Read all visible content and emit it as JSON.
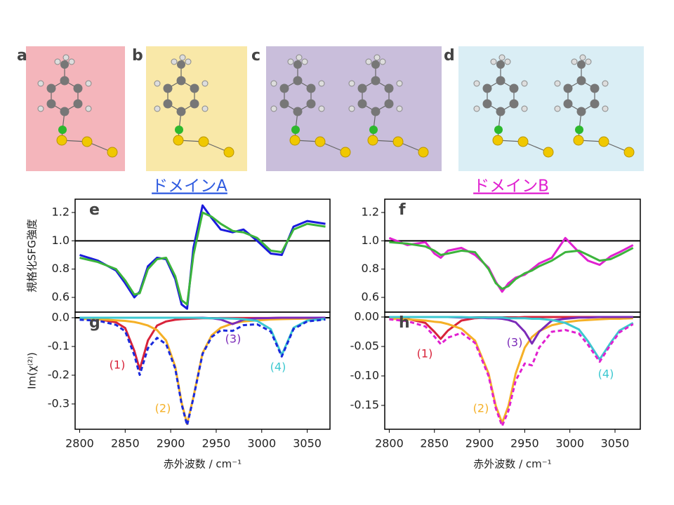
{
  "figure": {
    "panel_labels": [
      "a",
      "b",
      "c",
      "d"
    ],
    "domain_labels": [
      "ドメインA",
      "ドメインB"
    ],
    "domain_colors": [
      "#2f5be0",
      "#e020d0"
    ]
  },
  "chart_data": [
    {
      "type": "line",
      "label": "e",
      "ylabel": "規格化SFG強度",
      "x": [
        2800,
        2820,
        2840,
        2850,
        2860,
        2866,
        2875,
        2885,
        2895,
        2905,
        2912,
        2918,
        2925,
        2935,
        2945,
        2955,
        2968,
        2980,
        2995,
        3010,
        3022,
        3035,
        3050,
        3070
      ],
      "series": [
        {
          "color": "#1a1adc",
          "dash": false,
          "values": [
            0.9,
            0.86,
            0.79,
            0.7,
            0.6,
            0.64,
            0.82,
            0.88,
            0.87,
            0.73,
            0.55,
            0.52,
            0.95,
            1.25,
            1.16,
            1.08,
            1.06,
            1.08,
            1.0,
            0.91,
            0.9,
            1.1,
            1.14,
            1.12
          ]
        },
        {
          "color": "#3cb43c",
          "dash": false,
          "values": [
            0.88,
            0.85,
            0.8,
            0.72,
            0.62,
            0.63,
            0.8,
            0.87,
            0.88,
            0.75,
            0.58,
            0.55,
            0.9,
            1.2,
            1.17,
            1.12,
            1.07,
            1.06,
            1.02,
            0.93,
            0.92,
            1.08,
            1.12,
            1.1
          ]
        }
      ],
      "xlim": [
        2795,
        3075
      ],
      "ylim": [
        0.496,
        1.294
      ],
      "yticks": [
        0.6,
        0.8,
        {
          "value": 1,
          "label": "1.0"
        },
        1.2
      ],
      "hline": 1
    },
    {
      "type": "line",
      "label": "f",
      "x": [
        2800,
        2820,
        2840,
        2850,
        2857,
        2865,
        2880,
        2895,
        2910,
        2918,
        2925,
        2932,
        2940,
        2950,
        2958,
        2966,
        2980,
        2995,
        3010,
        3020,
        3033,
        3045,
        3055,
        3070
      ],
      "series": [
        {
          "color": "#e020d0",
          "dash": false,
          "values": [
            1.02,
            0.97,
            0.99,
            0.91,
            0.88,
            0.93,
            0.95,
            0.9,
            0.81,
            0.71,
            0.64,
            0.7,
            0.74,
            0.76,
            0.8,
            0.84,
            0.88,
            1.02,
            0.92,
            0.86,
            0.83,
            0.89,
            0.92,
            0.97
          ]
        },
        {
          "color": "#3cb43c",
          "dash": false,
          "values": [
            0.99,
            0.98,
            0.96,
            0.93,
            0.9,
            0.91,
            0.93,
            0.92,
            0.8,
            0.7,
            0.66,
            0.68,
            0.73,
            0.77,
            0.79,
            0.82,
            0.86,
            0.92,
            0.93,
            0.9,
            0.86,
            0.87,
            0.9,
            0.95
          ]
        }
      ],
      "xlim": [
        2795,
        3078
      ],
      "ylim": [
        0.496,
        1.294
      ],
      "yticks": [
        0.6,
        0.8,
        {
          "value": 1,
          "label": "1.0"
        },
        1.2
      ],
      "hline": 1
    },
    {
      "type": "line",
      "label": "g",
      "ylabel": "Im(χ⁽²⁾)",
      "xlabel": "赤外波数 / cm⁻¹",
      "x": [
        2800,
        2820,
        2840,
        2850,
        2860,
        2866,
        2875,
        2885,
        2895,
        2905,
        2912,
        2918,
        2925,
        2935,
        2945,
        2955,
        2968,
        2980,
        2995,
        3010,
        3022,
        3035,
        3050,
        3070
      ],
      "series": [
        {
          "color": "#d8233a",
          "dash": false,
          "values": [
            -0.003,
            -0.005,
            -0.016,
            -0.036,
            -0.115,
            -0.18,
            -0.079,
            -0.027,
            -0.013,
            -0.007,
            -0.005,
            -0.004,
            -0.003,
            -0.002,
            -0.002,
            -0.001,
            -0.001,
            -0.001,
            -0.001,
            -0.001,
            0,
            0,
            0,
            0
          ]
        },
        {
          "color": "#f5b026",
          "dash": false,
          "values": [
            -0.004,
            -0.005,
            -0.009,
            -0.011,
            -0.015,
            -0.019,
            -0.027,
            -0.043,
            -0.079,
            -0.17,
            -0.296,
            -0.37,
            -0.276,
            -0.123,
            -0.061,
            -0.035,
            -0.02,
            -0.013,
            -0.009,
            -0.006,
            -0.005,
            -0.004,
            -0.003,
            -0.002
          ]
        },
        {
          "color": "#7b2ab8",
          "dash": false,
          "values": [
            0,
            0,
            0,
            0,
            0,
            0,
            0,
            0,
            0,
            0,
            0,
            0,
            0,
            0,
            -0.002,
            -0.006,
            -0.022,
            -0.007,
            -0.002,
            -0.001,
            0,
            0,
            0,
            0
          ]
        },
        {
          "color": "#3cc8d0",
          "dash": false,
          "values": [
            0,
            0,
            0,
            0,
            0,
            0,
            0,
            0,
            0,
            0,
            0,
            0,
            0,
            -0.001,
            -0.002,
            -0.002,
            -0.003,
            -0.005,
            -0.011,
            -0.04,
            -0.13,
            -0.035,
            -0.01,
            -0.004
          ]
        },
        {
          "color": "#1a2adc",
          "dash": true,
          "values": [
            -0.007,
            -0.01,
            -0.025,
            -0.047,
            -0.13,
            -0.199,
            -0.106,
            -0.07,
            -0.092,
            -0.177,
            -0.301,
            -0.374,
            -0.279,
            -0.126,
            -0.067,
            -0.044,
            -0.046,
            -0.026,
            -0.023,
            -0.048,
            -0.135,
            -0.039,
            -0.013,
            -0.006
          ]
        }
      ],
      "annotations": [
        "(1)",
        "(2)",
        "(3)",
        "(4)"
      ],
      "xlim": [
        2795,
        3075
      ],
      "ylim": [
        -0.388,
        0.0195
      ],
      "xticks": [
        2800,
        2850,
        2900,
        2950,
        3000,
        3050
      ],
      "yticks": [
        {
          "value": 0,
          "label": "0.0"
        },
        -0.1,
        -0.2,
        -0.3
      ],
      "hline": 0
    },
    {
      "type": "line",
      "label": "h",
      "xlabel": "赤外波数 / cm⁻¹",
      "x": [
        2800,
        2820,
        2840,
        2850,
        2857,
        2865,
        2880,
        2895,
        2910,
        2918,
        2925,
        2932,
        2940,
        2950,
        2958,
        2966,
        2980,
        2995,
        3010,
        3020,
        3033,
        3045,
        3055,
        3070
      ],
      "series": [
        {
          "color": "#d8233a",
          "dash": false,
          "values": [
            -0.001,
            -0.003,
            -0.01,
            -0.025,
            -0.037,
            -0.023,
            -0.006,
            -0.002,
            -0.001,
            -0.001,
            -0.001,
            -0.001,
            -0.001,
            0,
            0,
            0,
            0,
            0,
            0,
            0,
            0,
            0,
            0,
            0
          ]
        },
        {
          "color": "#f5b026",
          "dash": false,
          "values": [
            -0.003,
            -0.004,
            -0.006,
            -0.008,
            -0.009,
            -0.012,
            -0.02,
            -0.04,
            -0.096,
            -0.151,
            -0.18,
            -0.151,
            -0.096,
            -0.052,
            -0.034,
            -0.024,
            -0.014,
            -0.009,
            -0.006,
            -0.005,
            -0.004,
            -0.003,
            -0.003,
            -0.002
          ]
        },
        {
          "color": "#7b2ab8",
          "dash": false,
          "values": [
            0,
            0,
            0,
            0,
            0,
            0,
            -0.001,
            -0.001,
            -0.002,
            -0.002,
            -0.003,
            -0.005,
            -0.009,
            -0.025,
            -0.045,
            -0.025,
            -0.006,
            -0.003,
            -0.001,
            -0.001,
            0,
            0,
            0,
            0
          ]
        },
        {
          "color": "#3cc8d0",
          "dash": false,
          "values": [
            0,
            0,
            0,
            0,
            0,
            0,
            0,
            -0.001,
            -0.001,
            -0.001,
            -0.001,
            -0.002,
            -0.002,
            -0.002,
            -0.003,
            -0.003,
            -0.005,
            -0.01,
            -0.021,
            -0.041,
            -0.072,
            -0.044,
            -0.023,
            -0.01
          ]
        },
        {
          "color": "#e020d0",
          "dash": true,
          "values": [
            -0.004,
            -0.007,
            -0.016,
            -0.033,
            -0.046,
            -0.035,
            -0.027,
            -0.044,
            -0.1,
            -0.155,
            -0.185,
            -0.159,
            -0.108,
            -0.079,
            -0.082,
            -0.052,
            -0.025,
            -0.022,
            -0.028,
            -0.047,
            -0.076,
            -0.047,
            -0.026,
            -0.012
          ]
        }
      ],
      "annotations": [
        "(1)",
        "(2)",
        "(3)",
        "(4)"
      ],
      "xlim": [
        2795,
        3078
      ],
      "ylim": [
        -0.1905,
        0.0083
      ],
      "xticks": [
        2800,
        2850,
        2900,
        2950,
        3000,
        3050
      ],
      "yticks": [
        {
          "value": 0,
          "label": "0.00"
        },
        -0.05,
        {
          "value": -0.1,
          "label": "-0.10"
        },
        -0.15
      ],
      "hline": 0
    }
  ]
}
